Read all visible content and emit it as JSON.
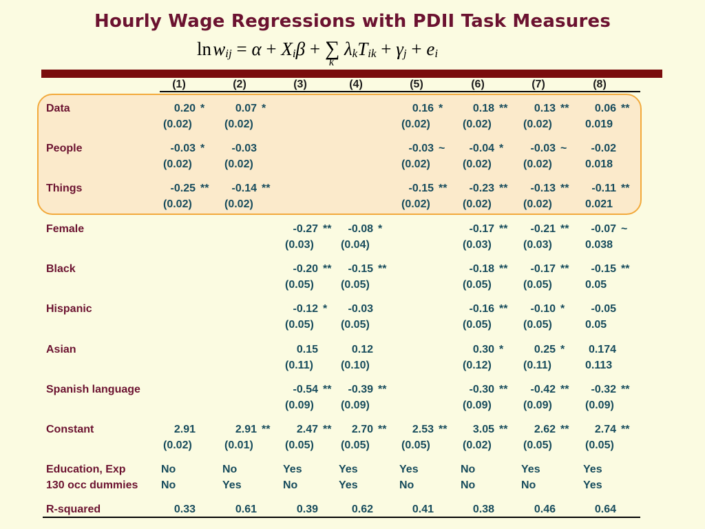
{
  "title": "Hourly Wage Regressions with PDII Task Measures",
  "columns": [
    "(1)",
    "(2)",
    "(3)",
    "(4)",
    "(5)",
    "(6)",
    "(7)",
    "(8)"
  ],
  "rows": [
    {
      "label": "Data",
      "coef": [
        "0.20",
        "0.07",
        "",
        "",
        "0.16",
        "0.18",
        "0.13",
        "0.06"
      ],
      "sig": [
        "*",
        "*",
        "",
        "",
        "*",
        "**",
        "**",
        "**"
      ],
      "se": [
        "(0.02)",
        "(0.02)",
        "",
        "",
        "(0.02)",
        "(0.02)",
        "(0.02)",
        "0.019"
      ]
    },
    {
      "label": "People",
      "coef": [
        "-0.03",
        "-0.03",
        "",
        "",
        "-0.03",
        "-0.04",
        "-0.03",
        "-0.02"
      ],
      "sig": [
        "*",
        "",
        "",
        "",
        "~",
        "*",
        "~",
        ""
      ],
      "se": [
        "(0.02)",
        "(0.02)",
        "",
        "",
        "(0.02)",
        "(0.02)",
        "(0.02)",
        "0.018"
      ]
    },
    {
      "label": "Things",
      "coef": [
        "-0.25",
        "-0.14",
        "",
        "",
        "-0.15",
        "-0.23",
        "-0.13",
        "-0.11"
      ],
      "sig": [
        "**",
        "**",
        "",
        "",
        "**",
        "**",
        "**",
        "**"
      ],
      "se": [
        "(0.02)",
        "(0.02)",
        "",
        "",
        "(0.02)",
        "(0.02)",
        "(0.02)",
        "0.021"
      ]
    },
    {
      "label": "Female",
      "coef": [
        "",
        "",
        "-0.27",
        "-0.08",
        "",
        "-0.17",
        "-0.21",
        "-0.07"
      ],
      "sig": [
        "",
        "",
        "**",
        "*",
        "",
        "**",
        "**",
        "~"
      ],
      "se": [
        "",
        "",
        "(0.03)",
        "(0.04)",
        "",
        "(0.03)",
        "(0.03)",
        "0.038"
      ]
    },
    {
      "label": "Black",
      "coef": [
        "",
        "",
        "-0.20",
        "-0.15",
        "",
        "-0.18",
        "-0.17",
        "-0.15"
      ],
      "sig": [
        "",
        "",
        "**",
        "**",
        "",
        "**",
        "**",
        "**"
      ],
      "se": [
        "",
        "",
        "(0.05)",
        "(0.05)",
        "",
        "(0.05)",
        "(0.05)",
        "0.05"
      ]
    },
    {
      "label": "Hispanic",
      "coef": [
        "",
        "",
        "-0.12",
        "-0.03",
        "",
        "-0.16",
        "-0.10",
        "-0.05"
      ],
      "sig": [
        "",
        "",
        "*",
        "",
        "",
        "**",
        "*",
        ""
      ],
      "se": [
        "",
        "",
        "(0.05)",
        "(0.05)",
        "",
        "(0.05)",
        "(0.05)",
        "0.05"
      ]
    },
    {
      "label": "Asian",
      "coef": [
        "",
        "",
        "0.15",
        "0.12",
        "",
        "0.30",
        "0.25",
        "0.174"
      ],
      "sig": [
        "",
        "",
        "",
        "",
        "",
        "*",
        "*",
        ""
      ],
      "se": [
        "",
        "",
        "(0.11)",
        "(0.10)",
        "",
        "(0.12)",
        "(0.11)",
        "0.113"
      ]
    },
    {
      "label": "Spanish language",
      "coef": [
        "",
        "",
        "-0.54",
        "-0.39",
        "",
        "-0.30",
        "-0.42",
        "-0.32"
      ],
      "sig": [
        "",
        "",
        "**",
        "**",
        "",
        "**",
        "**",
        "**"
      ],
      "se": [
        "",
        "",
        "(0.09)",
        "(0.09)",
        "",
        "(0.09)",
        "(0.09)",
        "(0.09)"
      ]
    },
    {
      "label": "Constant",
      "coef": [
        "2.91",
        "2.91",
        "2.47",
        "2.70",
        "2.53",
        "3.05",
        "2.62",
        "2.74"
      ],
      "sig": [
        "",
        "**",
        "**",
        "**",
        "**",
        "**",
        "**",
        "**"
      ],
      "se": [
        "(0.02)",
        "(0.01)",
        "(0.05)",
        "(0.05)",
        "(0.05)",
        "(0.02)",
        "(0.05)",
        "(0.05)"
      ]
    }
  ],
  "controls": [
    {
      "label": "Education, Exp",
      "values": [
        "No",
        "No",
        "Yes",
        "Yes",
        "Yes",
        "No",
        "Yes",
        "Yes"
      ]
    },
    {
      "label": "130 occ dummies",
      "values": [
        "No",
        "Yes",
        "No",
        "Yes",
        "No",
        "No",
        "No",
        "Yes"
      ]
    }
  ],
  "rsquared": {
    "label": "R-squared",
    "values": [
      "0.33",
      "0.61",
      "0.39",
      "0.62",
      "0.41",
      "0.38",
      "0.46",
      "0.64"
    ]
  }
}
